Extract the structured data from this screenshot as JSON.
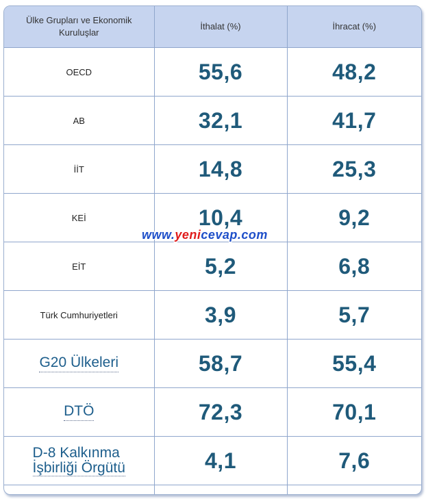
{
  "table": {
    "headers": {
      "col1_line1": "Ülke Grupları ve Ekonomik",
      "col1_line2": "Kuruluşlar",
      "col2": "İthalat (%)",
      "col3": "İhracat (%)"
    },
    "rows": [
      {
        "label": "OECD",
        "ithalat": "55,6",
        "ihracat": "48,2"
      },
      {
        "label": "AB",
        "ithalat": "32,1",
        "ihracat": "41,7"
      },
      {
        "label": "İİT",
        "ithalat": "14,8",
        "ihracat": "25,3"
      },
      {
        "label": "KEİ",
        "ithalat": "10,4",
        "ihracat": "9,2"
      },
      {
        "label": "EİT",
        "ithalat": "5,2",
        "ihracat": "6,8"
      },
      {
        "label": "Türk Cumhuriyetleri",
        "ithalat": "3,9",
        "ihracat": "5,7"
      },
      {
        "label": "G20 Ülkeleri",
        "ithalat": "58,7",
        "ihracat": "55,4"
      },
      {
        "label": "DTÖ",
        "ithalat": "72,3",
        "ihracat": "70,1"
      },
      {
        "label_line1": "D-8 Kalkınma",
        "label_line2": "İşbirliği Örgütü",
        "ithalat": "4,1",
        "ihracat": "7,6"
      }
    ]
  },
  "watermark": {
    "part1": "www.",
    "part2": "yeni",
    "part3": "cevap",
    "part4": ".com"
  }
}
